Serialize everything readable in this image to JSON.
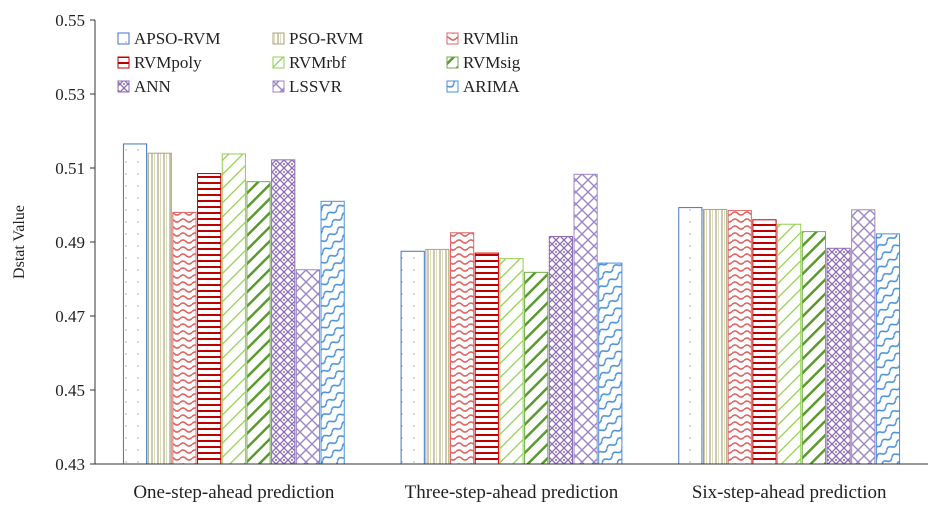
{
  "chart_data": {
    "type": "bar",
    "ylabel": "Dstat Value",
    "ylim": [
      0.43,
      0.55
    ],
    "yticks": [
      "0.43",
      "0.45",
      "0.47",
      "0.49",
      "0.51",
      "0.53",
      "0.55"
    ],
    "grid": false,
    "legend_position": "top-left",
    "categories": [
      "One-step-ahead prediction",
      "Three-step-ahead prediction",
      "Six-step-ahead prediction"
    ],
    "series": [
      {
        "name": "APSO-RVM",
        "values": [
          0.5165,
          0.4875,
          0.4993
        ],
        "color": "#4472c4",
        "pattern": "dots"
      },
      {
        "name": "PSO-RVM",
        "values": [
          0.514,
          0.488,
          0.4988
        ],
        "color": "#a9a57c",
        "pattern": "vlines"
      },
      {
        "name": "RVMlin",
        "values": [
          0.498,
          0.4925,
          0.4985
        ],
        "color": "#e06666",
        "pattern": "waves"
      },
      {
        "name": "RVMpoly",
        "values": [
          0.5085,
          0.487,
          0.496
        ],
        "color": "#c00000",
        "pattern": "hlines"
      },
      {
        "name": "RVMrbf",
        "values": [
          0.5138,
          0.4855,
          0.4948
        ],
        "color": "#92d050",
        "pattern": "diag-light"
      },
      {
        "name": "RVMsig",
        "values": [
          0.5063,
          0.4818,
          0.4928
        ],
        "color": "#70ad47",
        "pattern": "diag-heavy"
      },
      {
        "name": "ANN",
        "values": [
          0.5122,
          0.4915,
          0.4883
        ],
        "color": "#8e6bb5",
        "pattern": "diamond"
      },
      {
        "name": "LSSVR",
        "values": [
          0.4825,
          0.5083,
          0.4987
        ],
        "color": "#9b86c5",
        "pattern": "cross"
      },
      {
        "name": "ARIMA",
        "values": [
          0.501,
          0.4843,
          0.4922
        ],
        "color": "#4a90d9",
        "pattern": "wave-blue"
      }
    ]
  }
}
